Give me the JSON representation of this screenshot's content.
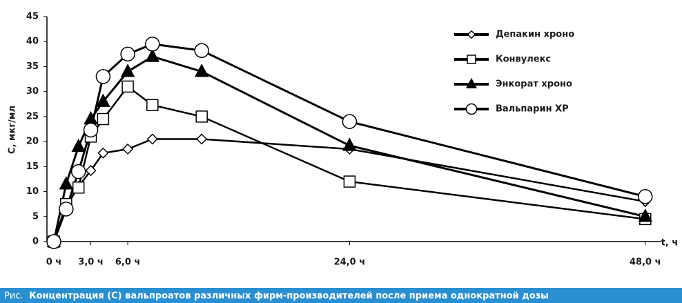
{
  "chart_data": {
    "type": "line",
    "y_label": "C, мкг/мл",
    "x_label": "t, ч",
    "caption_prefix": "Рис.",
    "caption": "Концентрация (С) вальпроатов различных фирм-производителей после приема однократной дозы",
    "x": [
      0,
      1,
      2,
      3,
      4,
      6,
      8,
      12,
      24,
      48
    ],
    "series": [
      {
        "name": "Депакин хроно",
        "color": "#000000",
        "marker": "diamond",
        "values": [
          0,
          7,
          11,
          14.2,
          17.7,
          18.5,
          20.5,
          20.5,
          18.5,
          8
        ]
      },
      {
        "name": "Конвулекс",
        "color": "#000000",
        "marker": "square",
        "values": [
          0,
          7.5,
          10.8,
          21,
          24.5,
          31,
          27.3,
          25,
          12,
          4.5
        ]
      },
      {
        "name": "Энкорат хроно",
        "color": "#000000",
        "marker": "triangle",
        "values": [
          0,
          11.5,
          19,
          24.5,
          28,
          34,
          37,
          34,
          19.2,
          5
        ]
      },
      {
        "name": "Вальпарин ХР",
        "color": "#000000",
        "marker": "circle",
        "values": [
          0,
          6.5,
          14,
          22.3,
          33,
          37.5,
          39.5,
          38.2,
          24,
          9
        ]
      }
    ],
    "xlim": [
      -0.56,
      49.3
    ],
    "xticks": [
      {
        "value": 0,
        "label": "0 ч"
      },
      {
        "value": 3,
        "label": "3,0 ч"
      },
      {
        "value": 6,
        "label": "6,0 ч"
      },
      {
        "value": 24,
        "label": "24,0 ч"
      },
      {
        "value": 48,
        "label": "48,0 ч"
      }
    ],
    "ylim": [
      0,
      45
    ],
    "yticks": [
      0,
      5,
      10,
      15,
      20,
      25,
      30,
      35,
      40,
      45
    ],
    "grid": false,
    "legend": "top-right"
  }
}
